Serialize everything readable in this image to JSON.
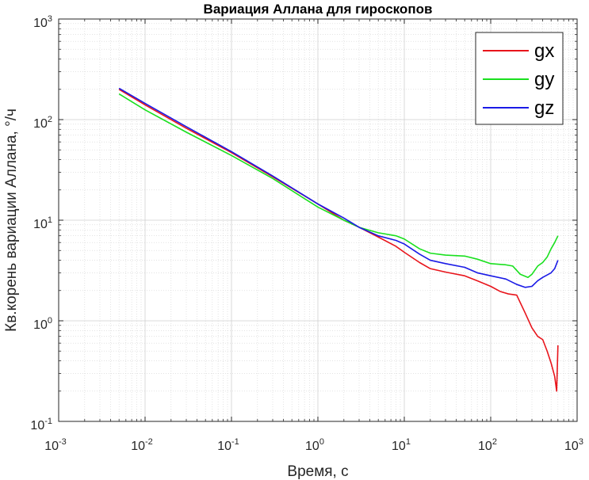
{
  "chart_data": {
    "type": "line",
    "title": "Вариация Аллана для гироскопов",
    "xlabel": "Время, с",
    "ylabel": "Кв.корень вариации Аллана, °/ч",
    "xscale": "log",
    "yscale": "log",
    "xlim": [
      0.001,
      1000
    ],
    "ylim": [
      0.1,
      1000
    ],
    "x_ticks": [
      {
        "base": "10",
        "exp": "-3"
      },
      {
        "base": "10",
        "exp": "-2"
      },
      {
        "base": "10",
        "exp": "-1"
      },
      {
        "base": "10",
        "exp": "0"
      },
      {
        "base": "10",
        "exp": "1"
      },
      {
        "base": "10",
        "exp": "2"
      },
      {
        "base": "10",
        "exp": "3"
      }
    ],
    "y_ticks": [
      {
        "base": "10",
        "exp": "-1"
      },
      {
        "base": "10",
        "exp": "0"
      },
      {
        "base": "10",
        "exp": "1"
      },
      {
        "base": "10",
        "exp": "2"
      },
      {
        "base": "10",
        "exp": "3"
      }
    ],
    "grid": true,
    "minor_grid": true,
    "legend_position": "top-right",
    "series": [
      {
        "name": "gx",
        "color": "#e8141b",
        "points": [
          [
            0.005,
            200
          ],
          [
            0.01,
            140
          ],
          [
            0.03,
            82
          ],
          [
            0.1,
            47
          ],
          [
            0.3,
            27
          ],
          [
            1,
            14.5
          ],
          [
            2,
            10
          ],
          [
            3,
            8.5
          ],
          [
            5,
            6.8
          ],
          [
            8,
            5.5
          ],
          [
            10,
            4.8
          ],
          [
            15,
            3.8
          ],
          [
            20,
            3.3
          ],
          [
            30,
            3.05
          ],
          [
            50,
            2.8
          ],
          [
            70,
            2.5
          ],
          [
            100,
            2.2
          ],
          [
            130,
            1.95
          ],
          [
            160,
            1.85
          ],
          [
            200,
            1.8
          ],
          [
            250,
            1.2
          ],
          [
            300,
            0.85
          ],
          [
            350,
            0.7
          ],
          [
            400,
            0.65
          ],
          [
            450,
            0.5
          ],
          [
            500,
            0.38
          ],
          [
            550,
            0.28
          ],
          [
            580,
            0.2
          ],
          [
            600,
            0.57
          ]
        ]
      },
      {
        "name": "gy",
        "color": "#19e01e",
        "points": [
          [
            0.005,
            180
          ],
          [
            0.01,
            125
          ],
          [
            0.03,
            75
          ],
          [
            0.1,
            44
          ],
          [
            0.3,
            26
          ],
          [
            1,
            13.5
          ],
          [
            2,
            10
          ],
          [
            3,
            8.5
          ],
          [
            5,
            7.5
          ],
          [
            8,
            7
          ],
          [
            10,
            6.5
          ],
          [
            15,
            5.2
          ],
          [
            20,
            4.7
          ],
          [
            30,
            4.5
          ],
          [
            50,
            4.4
          ],
          [
            70,
            4.1
          ],
          [
            100,
            3.7
          ],
          [
            150,
            3.6
          ],
          [
            180,
            3.5
          ],
          [
            220,
            2.9
          ],
          [
            270,
            2.7
          ],
          [
            300,
            2.9
          ],
          [
            350,
            3.5
          ],
          [
            400,
            3.8
          ],
          [
            450,
            4.3
          ],
          [
            500,
            5.2
          ],
          [
            550,
            6
          ],
          [
            600,
            7
          ]
        ]
      },
      {
        "name": "gz",
        "color": "#1a1ae6",
        "points": [
          [
            0.005,
            205
          ],
          [
            0.01,
            145
          ],
          [
            0.03,
            85
          ],
          [
            0.1,
            48
          ],
          [
            0.3,
            27.5
          ],
          [
            1,
            14.5
          ],
          [
            2,
            10.5
          ],
          [
            3,
            8.5
          ],
          [
            5,
            7
          ],
          [
            8,
            6.3
          ],
          [
            10,
            5.8
          ],
          [
            15,
            4.6
          ],
          [
            20,
            4
          ],
          [
            30,
            3.7
          ],
          [
            50,
            3.4
          ],
          [
            70,
            3
          ],
          [
            100,
            2.8
          ],
          [
            150,
            2.6
          ],
          [
            200,
            2.3
          ],
          [
            250,
            2.15
          ],
          [
            300,
            2.2
          ],
          [
            350,
            2.5
          ],
          [
            400,
            2.7
          ],
          [
            500,
            3
          ],
          [
            550,
            3.3
          ],
          [
            600,
            4
          ]
        ]
      }
    ]
  }
}
